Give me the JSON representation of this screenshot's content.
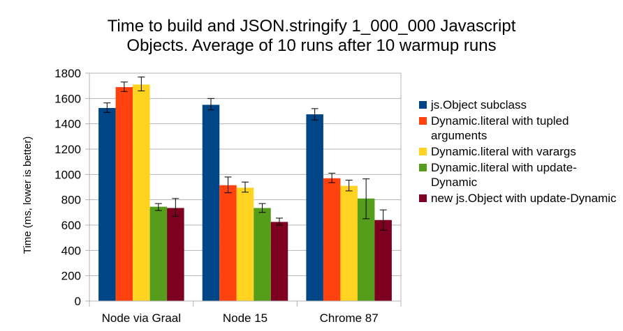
{
  "chart_data": {
    "type": "bar",
    "title_line1": "Time to build and JSON.stringify 1_000_000 Javascript",
    "title_line2": "Objects. Average of 10 runs after 10 warmup runs",
    "xlabel": "",
    "ylabel": "Time (ms, lower is better)",
    "ylim": [
      0,
      1800
    ],
    "yticks": [
      "0",
      "200",
      "400",
      "600",
      "800",
      "1000",
      "1200",
      "1400",
      "1600",
      "1800"
    ],
    "grid": true,
    "legend_position": "right",
    "categories": [
      "Node via Graal",
      "Node 15",
      "Chrome 87"
    ],
    "series": [
      {
        "name": "js.Object subclass",
        "color": "#004586",
        "values": [
          1525,
          1550,
          1475
        ],
        "err": [
          [
            1490,
            1565
          ],
          [
            1510,
            1600
          ],
          [
            1430,
            1520
          ]
        ]
      },
      {
        "name": "Dynamic.literal with tupled arguments",
        "color": "#ff420e",
        "values": [
          1690,
          915,
          970
        ],
        "err": [
          [
            1655,
            1730
          ],
          [
            855,
            980
          ],
          [
            935,
            1010
          ]
        ]
      },
      {
        "name": "Dynamic.literal with varargs",
        "color": "#ffd320",
        "values": [
          1710,
          895,
          910
        ],
        "err": [
          [
            1660,
            1770
          ],
          [
            860,
            940
          ],
          [
            870,
            955
          ]
        ]
      },
      {
        "name": "Dynamic.literal with update-Dynamic",
        "color": "#579d1c",
        "values": [
          745,
          735,
          810
        ],
        "err": [
          [
            715,
            770
          ],
          [
            700,
            770
          ],
          [
            650,
            965
          ]
        ]
      },
      {
        "name": "new js.Object with update-Dynamic",
        "color": "#7e0021",
        "values": [
          735,
          625,
          640
        ],
        "err": [
          [
            670,
            810
          ],
          [
            600,
            655
          ],
          [
            560,
            720
          ]
        ]
      }
    ]
  }
}
